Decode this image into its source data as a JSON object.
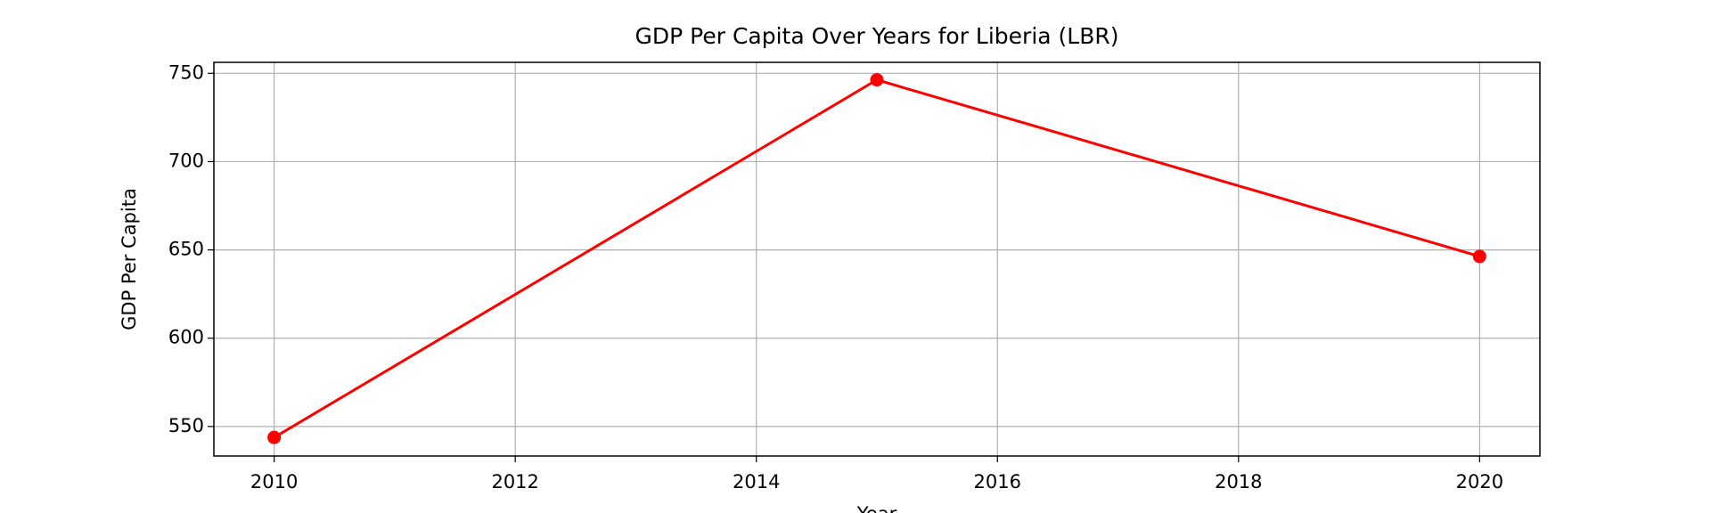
{
  "chart_data": {
    "type": "line",
    "title": "GDP Per Capita Over Years for Liberia (LBR)",
    "x_label": "Year",
    "y_label": "GDP Per Capita",
    "x": [
      2010,
      2015,
      2020
    ],
    "values": [
      543.8,
      746.3,
      646.3
    ],
    "color": "#ff0000",
    "xlim": [
      2009.5,
      2020.5
    ],
    "xticks": [
      2010,
      2012,
      2014,
      2016,
      2018,
      2020
    ],
    "ylim": [
      533.3,
      756.2
    ],
    "yticks": [
      550,
      600,
      650,
      700,
      750
    ],
    "grid": true,
    "markers": true
  }
}
